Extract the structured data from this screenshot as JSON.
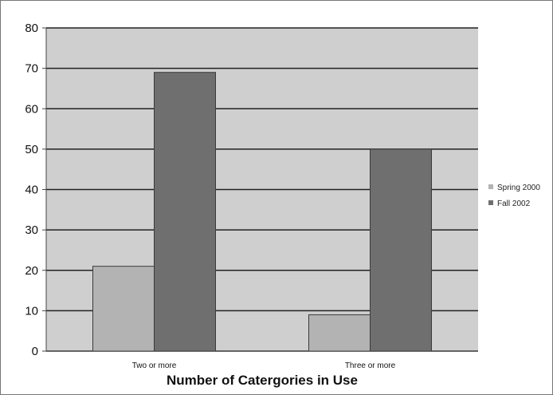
{
  "chart_data": {
    "type": "bar",
    "title": "",
    "xlabel": "Number of Catergories in Use",
    "ylabel": "",
    "categories": [
      "Two or more",
      "Three or more"
    ],
    "series": [
      {
        "name": "Spring 2000",
        "values": [
          21,
          9
        ],
        "color": "#b3b3b3"
      },
      {
        "name": "Fall 2002",
        "values": [
          69,
          50
        ],
        "color": "#6f6f6f"
      }
    ],
    "ylim": [
      0,
      80
    ],
    "yticks": [
      0,
      10,
      20,
      30,
      40,
      50,
      60,
      70,
      80
    ],
    "grid": true,
    "legend_position": "right",
    "plot_background": "#cfcfcf"
  }
}
